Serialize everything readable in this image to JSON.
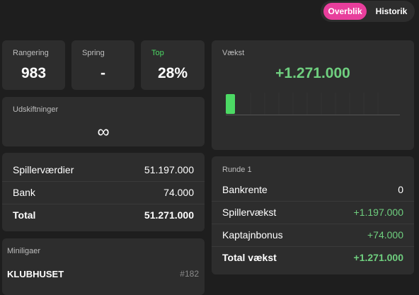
{
  "toggle": {
    "active": "Overblik",
    "inactive": "Historik"
  },
  "stats": [
    {
      "label": "Rangering",
      "value": "983"
    },
    {
      "label": "Spring",
      "value": "-"
    },
    {
      "label": "Top",
      "value": "28%"
    }
  ],
  "substitutions": {
    "label": "Udskiftninger",
    "value": "∞"
  },
  "values": {
    "rows": [
      [
        "Spillerværdier",
        "51.197.000"
      ],
      [
        "Bank",
        "74.000"
      ],
      [
        "Total",
        "51.271.000"
      ]
    ]
  },
  "mini_leagues": {
    "label": "Miniligaer",
    "items": [
      {
        "name": "KLUBHUSET",
        "rank": "#182"
      }
    ]
  },
  "growth": {
    "label": "Vækst",
    "value": "+1.271.000"
  },
  "round": {
    "label": "Runde 1",
    "rows": [
      [
        "Bankrente",
        "0"
      ],
      [
        "Spillervækst",
        "+1.197.000"
      ],
      [
        "Kaptajnbonus",
        "+74.000"
      ],
      [
        "Total vækst",
        "+1.271.000"
      ]
    ]
  }
}
